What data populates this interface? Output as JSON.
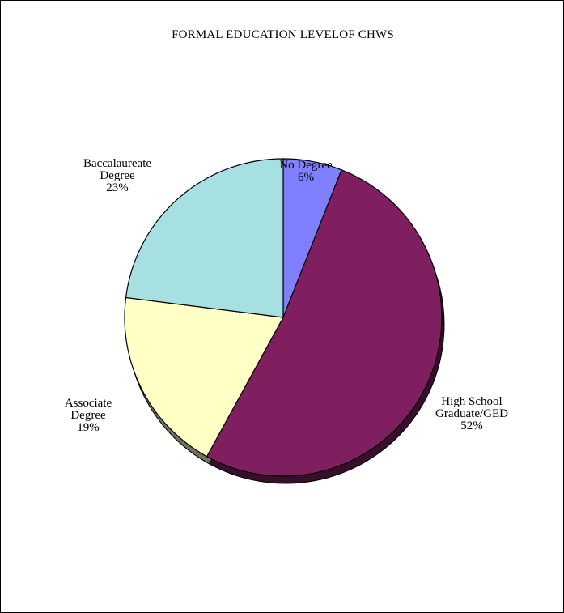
{
  "chart_data": {
    "type": "pie",
    "title": "FORMAL EDUCATION LEVELOF CHWS",
    "slices": [
      {
        "label_lines": [
          "No Degree"
        ],
        "percent_label": "6%",
        "value": 6,
        "color": "#8080ff"
      },
      {
        "label_lines": [
          "High School",
          "Graduate/GED"
        ],
        "percent_label": "52%",
        "value": 52,
        "color": "#7f1f5f"
      },
      {
        "label_lines": [
          "Associate",
          "Degree"
        ],
        "percent_label": "19%",
        "value": 19,
        "color": "#ffffc6"
      },
      {
        "label_lines": [
          "Baccalaureate",
          "Degree"
        ],
        "percent_label": "23%",
        "value": 23,
        "color": "#a6e0e2"
      }
    ],
    "legend": "none",
    "start": "12 o'clock",
    "direction": "clockwise"
  }
}
